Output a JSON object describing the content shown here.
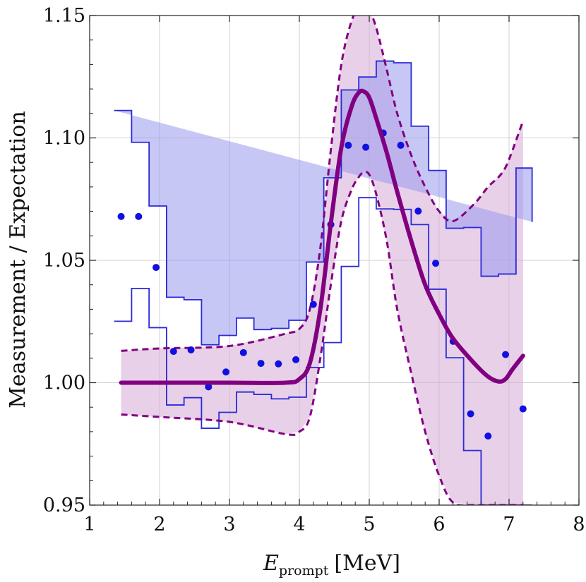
{
  "chart_data": {
    "type": "line",
    "title": "",
    "xlabel_main": "E",
    "xlabel_sub": "prompt",
    "xlabel_unit": "[MeV]",
    "ylabel": "Measurement / Expectation",
    "xlim": [
      1,
      8
    ],
    "ylim": [
      0.95,
      1.15
    ],
    "x_ticks": [
      "1",
      "2",
      "3",
      "4",
      "5",
      "6",
      "7",
      "8"
    ],
    "y_ticks": [
      "0.95",
      "1.00",
      "1.05",
      "1.10",
      "1.15"
    ],
    "grid": true,
    "colors": {
      "data_band_fill": "#9999ee",
      "data_band_edge": "#2a2ad8",
      "points": "#1010e0",
      "model_line": "#800080",
      "model_band_fill": "#d8b0d8"
    },
    "data_band": {
      "bin_edges": [
        1.35,
        1.6,
        1.85,
        2.1,
        2.35,
        2.6,
        2.85,
        3.1,
        3.35,
        3.6,
        3.85,
        4.1,
        4.35,
        4.6,
        4.85,
        5.1,
        5.35,
        5.6,
        5.85,
        6.1,
        6.35,
        6.6,
        6.85,
        7.1,
        7.33
      ],
      "upper": [
        1.1112,
        1.0982,
        1.0722,
        1.0349,
        1.0339,
        1.0155,
        1.0193,
        1.0264,
        1.0217,
        1.0222,
        1.0255,
        1.0493,
        1.0837,
        1.1196,
        1.1249,
        1.1314,
        1.1307,
        1.1048,
        1.0867,
        1.0631,
        1.0634,
        1.0435,
        1.0444,
        1.0877,
        1.0657
      ],
      "lower": [
        1.0251,
        1.0385,
        1.0225,
        0.9909,
        0.9939,
        0.9814,
        0.9879,
        0.9962,
        0.9952,
        0.9934,
        0.9941,
        1.0062,
        1.0164,
        1.0475,
        1.0756,
        1.071,
        1.0708,
        1.0646,
        1.0382,
        1.0102,
        0.9723,
        0.95,
        0.95,
        0.95,
        0.95
      ]
    },
    "points": {
      "x": [
        1.45,
        1.7,
        1.95,
        2.2,
        2.45,
        2.7,
        2.95,
        3.2,
        3.45,
        3.7,
        3.95,
        4.2,
        4.45,
        4.7,
        4.95,
        5.2,
        5.45,
        5.7,
        5.95,
        6.2,
        6.45,
        6.7,
        6.95,
        7.2
      ],
      "y": [
        1.0679,
        1.0679,
        1.0471,
        1.0128,
        1.0134,
        0.9983,
        1.0044,
        1.0123,
        1.0079,
        1.0077,
        1.0094,
        1.032,
        1.0646,
        1.097,
        1.0962,
        1.102,
        1.097,
        1.0701,
        1.0488,
        1.0169,
        0.9873,
        0.9782,
        1.0115,
        0.9893
      ]
    },
    "model": {
      "x": [
        1.45,
        2.0,
        3.0,
        3.8,
        4.0,
        4.15,
        4.3,
        4.45,
        4.6,
        4.75,
        4.85,
        4.92,
        5.0,
        5.1,
        5.25,
        5.4,
        5.6,
        5.8,
        6.0,
        6.2,
        6.5,
        6.7,
        6.85,
        6.95,
        7.05,
        7.2
      ],
      "center": [
        1.0,
        1.0,
        1.0,
        1.0,
        1.0015,
        1.008,
        1.03,
        1.065,
        1.096,
        1.113,
        1.1185,
        1.119,
        1.1165,
        1.108,
        1.094,
        1.078,
        1.058,
        1.04,
        1.028,
        1.018,
        1.008,
        1.0025,
        1.0005,
        1.0015,
        1.0055,
        1.011
      ],
      "upper": [
        1.013,
        1.014,
        1.015,
        1.02,
        1.022,
        1.03,
        1.055,
        1.095,
        1.13,
        1.148,
        1.152,
        1.153,
        1.152,
        1.145,
        1.128,
        1.11,
        1.093,
        1.08,
        1.07,
        1.066,
        1.073,
        1.08,
        1.084,
        1.088,
        1.095,
        1.107
      ],
      "lower": [
        0.987,
        0.986,
        0.984,
        0.979,
        0.98,
        0.986,
        1.01,
        1.04,
        1.066,
        1.079,
        1.084,
        1.086,
        1.085,
        1.077,
        1.058,
        1.03,
        1.004,
        0.98,
        0.962,
        0.951,
        0.95,
        0.95,
        0.95,
        0.95,
        0.95,
        0.95
      ]
    }
  }
}
